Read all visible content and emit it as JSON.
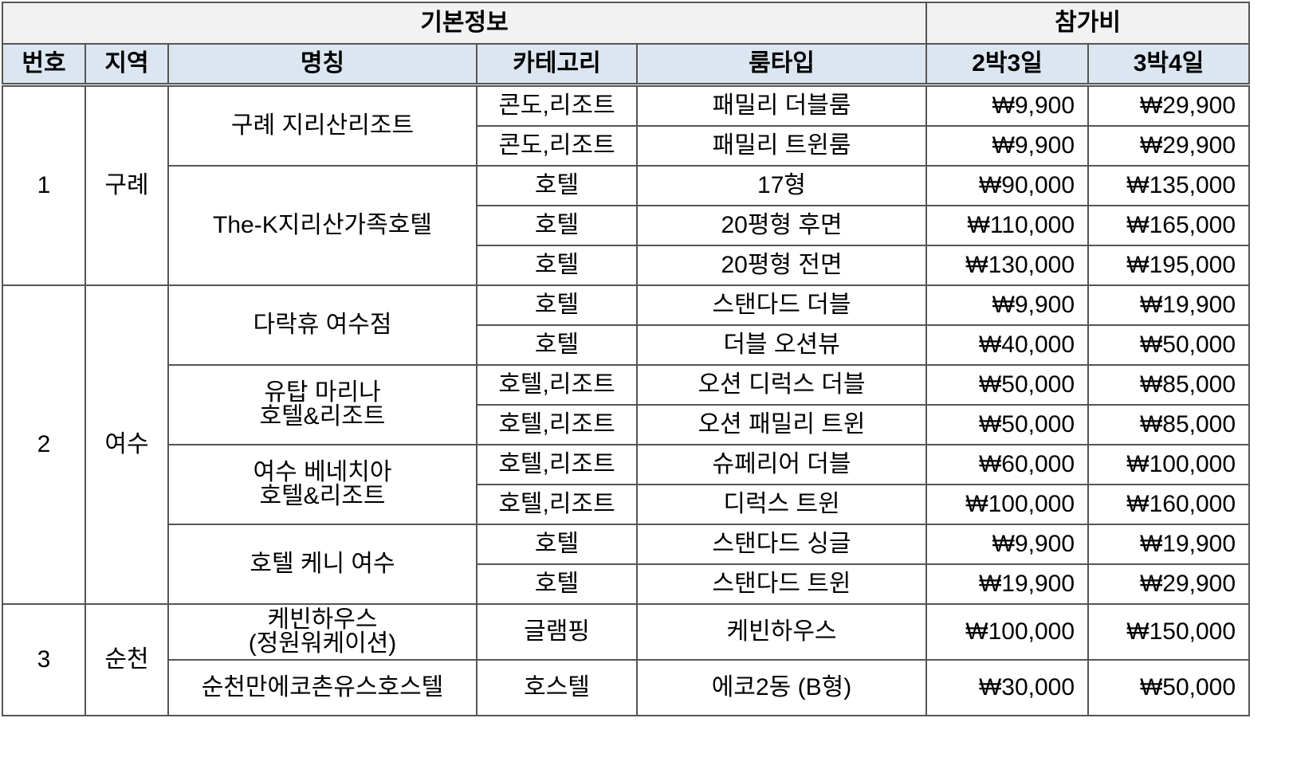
{
  "header": {
    "group_basic": "기본정보",
    "group_fee": "참가비",
    "columns": [
      "번호",
      "지역",
      "명칭",
      "카테고리",
      "룸타입",
      "2박3일",
      "3박4일"
    ]
  },
  "regions": [
    {
      "no": "1",
      "region": "구례",
      "hotels": [
        {
          "name": "구례 지리산리조트",
          "rooms": [
            {
              "category": "콘도,리조트",
              "room": "패밀리 더블룸",
              "fee_2n3d": "₩9,900",
              "fee_3n4d": "₩29,900"
            },
            {
              "category": "콘도,리조트",
              "room": "패밀리 트윈룸",
              "fee_2n3d": "₩9,900",
              "fee_3n4d": "₩29,900"
            }
          ]
        },
        {
          "name": "The-K지리산가족호텔",
          "rooms": [
            {
              "category": "호텔",
              "room": "17형",
              "fee_2n3d": "₩90,000",
              "fee_3n4d": "₩135,000"
            },
            {
              "category": "호텔",
              "room": "20평형 후면",
              "fee_2n3d": "₩110,000",
              "fee_3n4d": "₩165,000"
            },
            {
              "category": "호텔",
              "room": "20평형 전면",
              "fee_2n3d": "₩130,000",
              "fee_3n4d": "₩195,000"
            }
          ]
        }
      ]
    },
    {
      "no": "2",
      "region": "여수",
      "hotels": [
        {
          "name": "다락휴 여수점",
          "rooms": [
            {
              "category": "호텔",
              "room": "스탠다드 더블",
              "fee_2n3d": "₩9,900",
              "fee_3n4d": "₩19,900"
            },
            {
              "category": "호텔",
              "room": "더블 오션뷰",
              "fee_2n3d": "₩40,000",
              "fee_3n4d": "₩50,000"
            }
          ]
        },
        {
          "name": "유탑 마리나\n호텔&리조트",
          "rooms": [
            {
              "category": "호텔,리조트",
              "room": "오션 디럭스 더블",
              "fee_2n3d": "₩50,000",
              "fee_3n4d": "₩85,000"
            },
            {
              "category": "호텔,리조트",
              "room": "오션 패밀리 트윈",
              "fee_2n3d": "₩50,000",
              "fee_3n4d": "₩85,000"
            }
          ]
        },
        {
          "name": "여수 베네치아\n호텔&리조트",
          "rooms": [
            {
              "category": "호텔,리조트",
              "room": "슈페리어 더블",
              "fee_2n3d": "₩60,000",
              "fee_3n4d": "₩100,000"
            },
            {
              "category": "호텔,리조트",
              "room": "디럭스 트윈",
              "fee_2n3d": "₩100,000",
              "fee_3n4d": "₩160,000"
            }
          ]
        },
        {
          "name": "호텔 케니 여수",
          "rooms": [
            {
              "category": "호텔",
              "room": "스탠다드 싱글",
              "fee_2n3d": "₩9,900",
              "fee_3n4d": "₩19,900"
            },
            {
              "category": "호텔",
              "room": "스탠다드 트윈",
              "fee_2n3d": "₩19,900",
              "fee_3n4d": "₩29,900"
            }
          ]
        }
      ]
    },
    {
      "no": "3",
      "region": "순천",
      "hotels": [
        {
          "name": "케빈하우스\n(정원워케이션)",
          "rooms": [
            {
              "category": "글램핑",
              "room": "케빈하우스",
              "fee_2n3d": "₩100,000",
              "fee_3n4d": "₩150,000"
            }
          ]
        },
        {
          "name": "순천만에코촌유스호스텔",
          "rooms": [
            {
              "category": "호스텔",
              "room": "에코2동 (B형)",
              "fee_2n3d": "₩30,000",
              "fee_3n4d": "₩50,000"
            }
          ]
        }
      ]
    }
  ]
}
